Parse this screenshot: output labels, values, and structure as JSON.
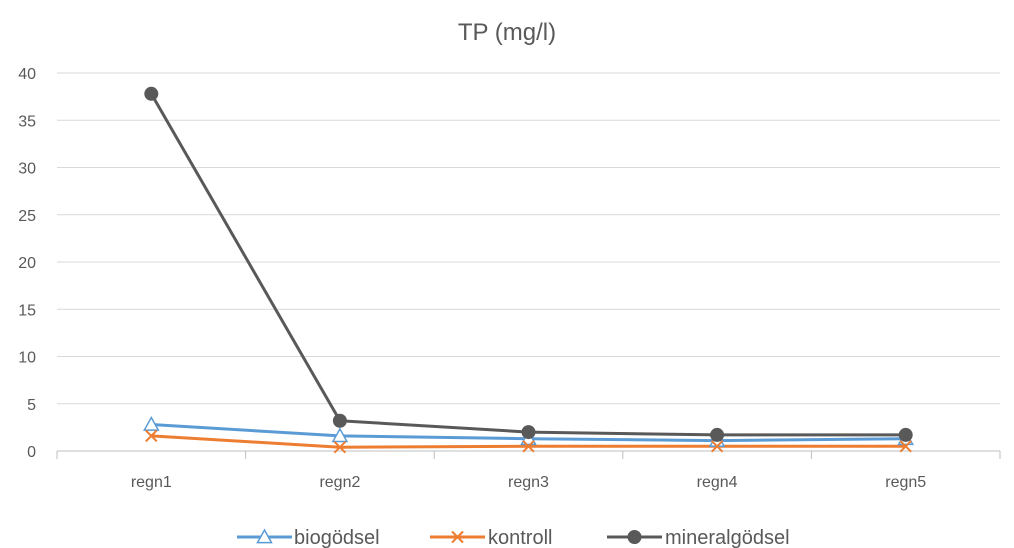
{
  "chart_data": {
    "type": "line",
    "title": "TP (mg/l)",
    "xlabel": "",
    "ylabel": "",
    "categories": [
      "regn1",
      "regn2",
      "regn3",
      "regn4",
      "regn5"
    ],
    "ylim": [
      0,
      40
    ],
    "yticks": [
      0,
      5,
      10,
      15,
      20,
      25,
      30,
      35,
      40
    ],
    "grid": true,
    "legend_position": "bottom",
    "series": [
      {
        "name": "biogödsel",
        "values": [
          2.8,
          1.6,
          1.3,
          1.1,
          1.3
        ],
        "color": "#5b9bd5",
        "marker": "triangle-open"
      },
      {
        "name": "kontroll",
        "values": [
          1.6,
          0.4,
          0.5,
          0.5,
          0.5
        ],
        "color": "#ed7d31",
        "marker": "x"
      },
      {
        "name": "mineralgödsel",
        "values": [
          37.8,
          3.2,
          2.0,
          1.7,
          1.7
        ],
        "color": "#595959",
        "marker": "circle"
      }
    ]
  }
}
